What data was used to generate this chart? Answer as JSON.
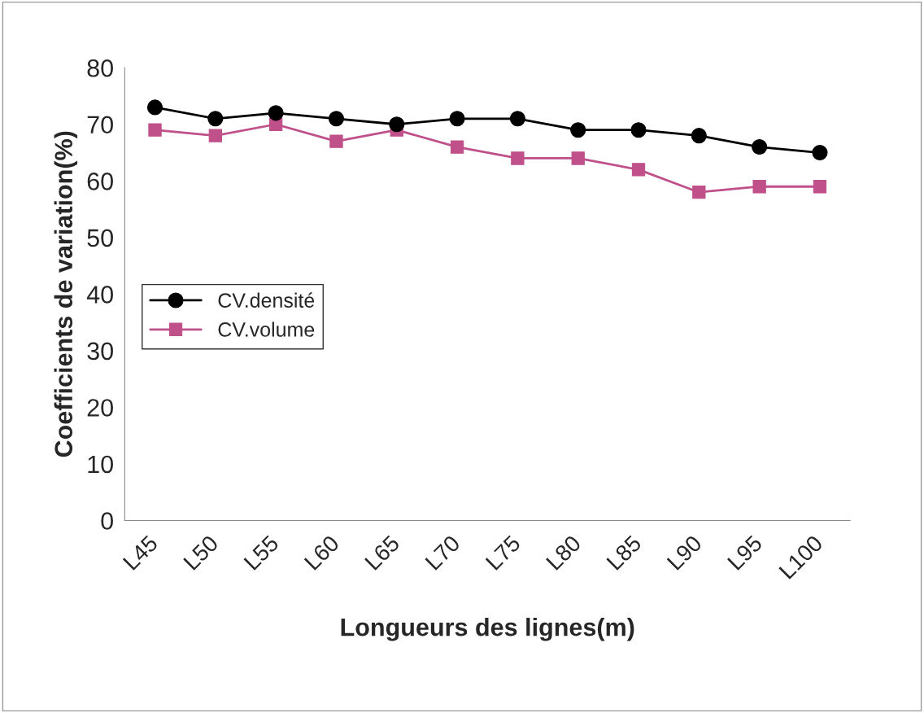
{
  "chart_data": {
    "type": "line",
    "xlabel": "Longueurs des lignes(m)",
    "ylabel": "Coefficients de variation(%)",
    "categories": [
      "L45",
      "L50",
      "L55",
      "L60",
      "L65",
      "L70",
      "L75",
      "L80",
      "L85",
      "L90",
      "L95",
      "L100"
    ],
    "series": [
      {
        "name": "CV.densité",
        "color": "#000000",
        "marker": "circle",
        "values": [
          73,
          71,
          72,
          71,
          70,
          71,
          71,
          69,
          69,
          68,
          66,
          65
        ]
      },
      {
        "name": "CV.volume",
        "color": "#c0508a",
        "marker": "square",
        "values": [
          69,
          68,
          70,
          67,
          69,
          66,
          64,
          64,
          62,
          58,
          59,
          59
        ]
      }
    ],
    "ylim": [
      0,
      80
    ],
    "yticks": [
      0,
      10,
      20,
      30,
      40,
      50,
      60,
      70,
      80
    ],
    "grid": false,
    "legend": "left"
  }
}
